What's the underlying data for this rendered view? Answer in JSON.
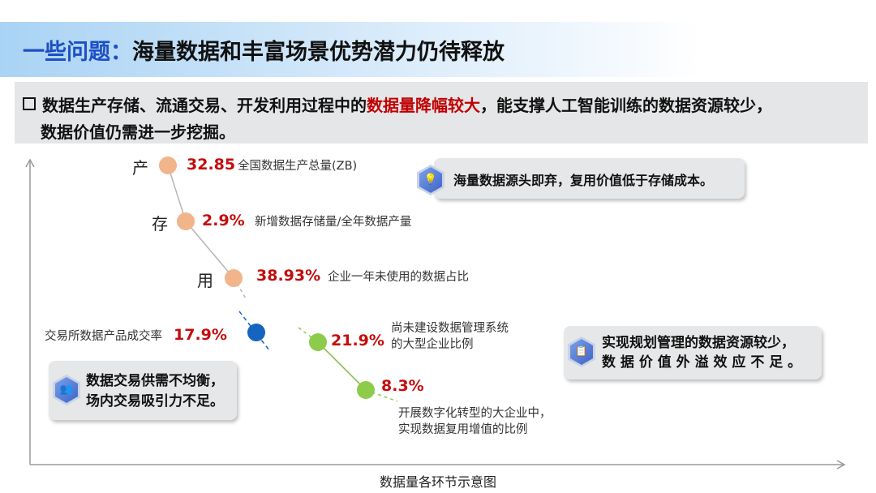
{
  "title": {
    "prefix": "一些问题：",
    "main": "海量数据和丰富场景优势潜力仍待释放"
  },
  "intro": {
    "line1_before": "数据生产存储、流通交易、开发利用过程中的",
    "line1_highlight": "数据量降幅较大",
    "line1_after": "，能支撑人工智能训练的数据资源较少，",
    "line2": "数据价值仍需进一步挖掘。"
  },
  "stages": [
    {
      "stage": "产",
      "value": "32.85",
      "desc": "全国数据生产总量(ZB)",
      "color": "#f2b48a"
    },
    {
      "stage": "存",
      "value": "2.9%",
      "desc": "新增数据存储量/全年数据产量",
      "color": "#f2b48a"
    },
    {
      "stage": "用",
      "value": "38.93%",
      "desc": "企业一年未使用的数据占比",
      "color": "#f2b48a"
    },
    {
      "stage": "",
      "value": "17.9%",
      "desc": "交易所数据产品成交率",
      "color": "#1565c0"
    },
    {
      "stage": "",
      "value": "21.9%",
      "desc1": "尚未建设数据管理系统",
      "desc2": "的大型企业比例",
      "color": "#8ccc4a"
    },
    {
      "stage": "",
      "value": "8.3%",
      "desc1": "开展数字化转型的大企业中，",
      "desc2": "实现数据复用增值的比例",
      "color": "#8ccc4a"
    }
  ],
  "callouts": [
    {
      "icon": "lightbulb-icon",
      "lines": [
        "海量数据源头即弃，复用价值低于存储成本。"
      ]
    },
    {
      "icon": "users-icon",
      "lines": [
        "数据交易供需不均衡，",
        "场内交易吸引力不足。"
      ]
    },
    {
      "icon": "clipboard-icon",
      "lines": [
        "实现规划管理的数据资源较少，",
        "数 据 价 值 外 溢 效 应 不 足 。"
      ]
    }
  ],
  "caption": "数据量各环节示意图"
}
